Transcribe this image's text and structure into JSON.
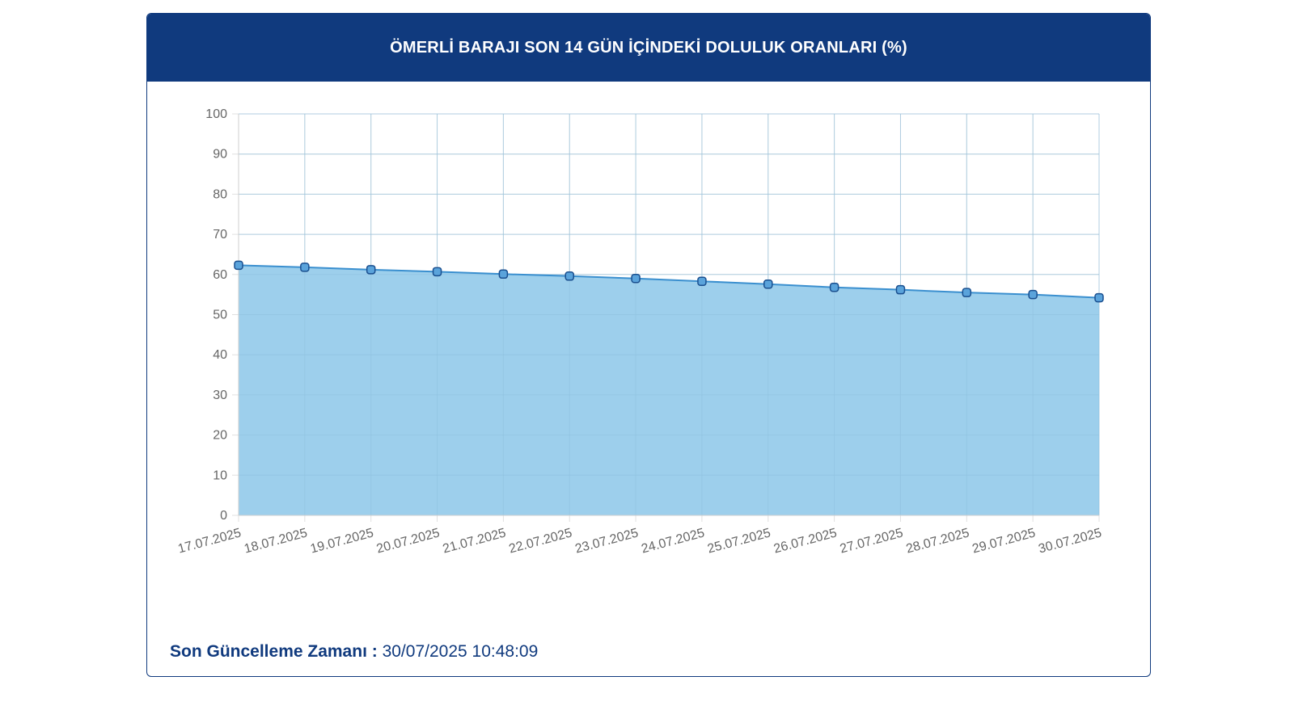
{
  "header": {
    "title": "ÖMERLİ BARAJI SON 14 GÜN İÇİNDEKİ DOLULUK ORANLARI (%)"
  },
  "footer": {
    "label": "Son Güncelleme Zamanı :",
    "value": "30/07/2025 10:48:09"
  },
  "colors": {
    "header_bg": "#103a7e",
    "line": "#3a8fcf",
    "fill": "#9dcfec",
    "point_fill": "#5aa3db",
    "point_stroke": "#1a4f8f",
    "grid": "#e0e0e0",
    "footer_text": "#103a7e"
  },
  "chart_data": {
    "type": "area",
    "title": "ÖMERLİ BARAJI SON 14 GÜN İÇİNDEKİ DOLULUK ORANLARI (%)",
    "categories": [
      "17.07.2025",
      "18.07.2025",
      "19.07.2025",
      "20.07.2025",
      "21.07.2025",
      "22.07.2025",
      "23.07.2025",
      "24.07.2025",
      "25.07.2025",
      "26.07.2025",
      "27.07.2025",
      "28.07.2025",
      "29.07.2025",
      "30.07.2025"
    ],
    "values": [
      62.3,
      61.8,
      61.2,
      60.7,
      60.1,
      59.6,
      59.0,
      58.3,
      57.6,
      56.8,
      56.2,
      55.5,
      55.0,
      54.2
    ],
    "ylim": [
      0,
      100
    ],
    "yticks": [
      0,
      10,
      20,
      30,
      40,
      50,
      60,
      70,
      80,
      90,
      100
    ],
    "grid": true,
    "legend": "none"
  }
}
